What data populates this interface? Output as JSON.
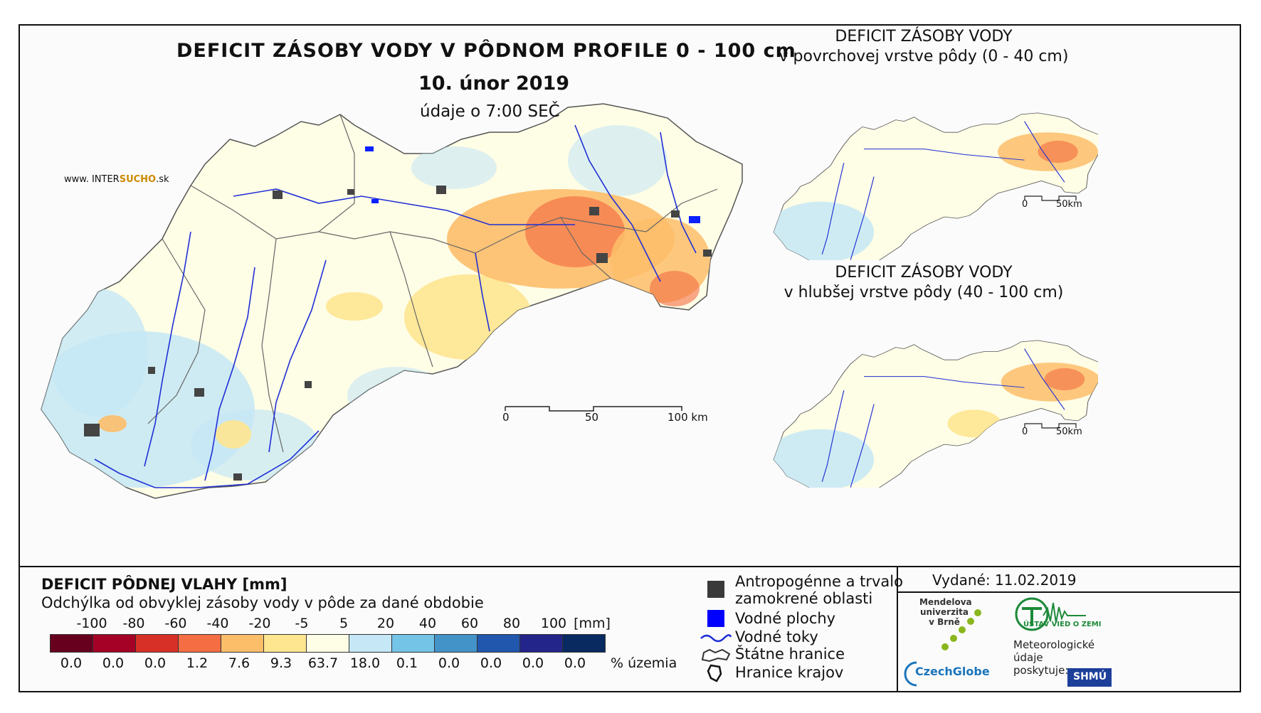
{
  "map": {
    "title": "DEFICIT ZÁSOBY VODY V PÔDNOM PROFILE 0 - 100 cm",
    "date": "10. únor 2019",
    "time_note": "údaje o 7:00 SEČ",
    "website_prefix": "www. INTER",
    "website_accent": "SUCHO",
    "website_suffix": ".sk",
    "scale": {
      "labels": [
        "0",
        "50",
        "100 km"
      ]
    }
  },
  "minimaps": [
    {
      "title_line1": "DEFICIT ZÁSOBY VODY",
      "title_line2": "v povrchovej vrstve pôdy (0 - 40 cm)",
      "scale_labels": [
        "0",
        "50km"
      ]
    },
    {
      "title_line1": "DEFICIT ZÁSOBY VODY",
      "title_line2": "v hlubšej vrstve pôdy (40 - 100 cm)",
      "scale_labels": [
        "0",
        "50km"
      ]
    }
  ],
  "legend": {
    "title": "DEFICIT PÔDNEJ VLAHY [mm]",
    "subtitle": "Odchýlka od obvyklej zásoby vody v pôde za dané obdobie",
    "ticks": [
      "-100",
      "-80",
      "-60",
      "-40",
      "-20",
      "-5",
      "5",
      "20",
      "40",
      "60",
      "80",
      "100"
    ],
    "unit": "[mm]",
    "colors": [
      "#67001f",
      "#a50026",
      "#d73027",
      "#f46d43",
      "#fdbe6a",
      "#fee690",
      "#fefde6",
      "#c6e7f5",
      "#74c4e8",
      "#4393c9",
      "#2157ad",
      "#24258a",
      "#082a61"
    ],
    "percentages": [
      "0.0",
      "0.0",
      "0.0",
      "1.2",
      "7.6",
      "9.3",
      "63.7",
      "18.0",
      "0.1",
      "0.0",
      "0.0",
      "0.0",
      "0.0"
    ],
    "percent_unit": "% územia"
  },
  "symbols": {
    "urban_line1": "Antropogénne a trvalo",
    "urban_line2": "zamokrené oblasti",
    "water_bodies": "Vodné plochy",
    "rivers": "Vodné toky",
    "state_border": "Štátne hranice",
    "region_border": "Hranice krajov"
  },
  "issued": "Vydané: 11.02.2019",
  "logos": {
    "mendel_line1": "Mendelova",
    "mendel_line2": "univerzita",
    "mendel_line3": "v Brně",
    "czechglobe": "CzechGlobe",
    "uvoz": "ÚSTAV VIED O ZEMI",
    "met_line1": "Meteorologické",
    "met_line2": "údaje",
    "met_line3": "poskytuje:",
    "shmu": "SHMÚ"
  }
}
